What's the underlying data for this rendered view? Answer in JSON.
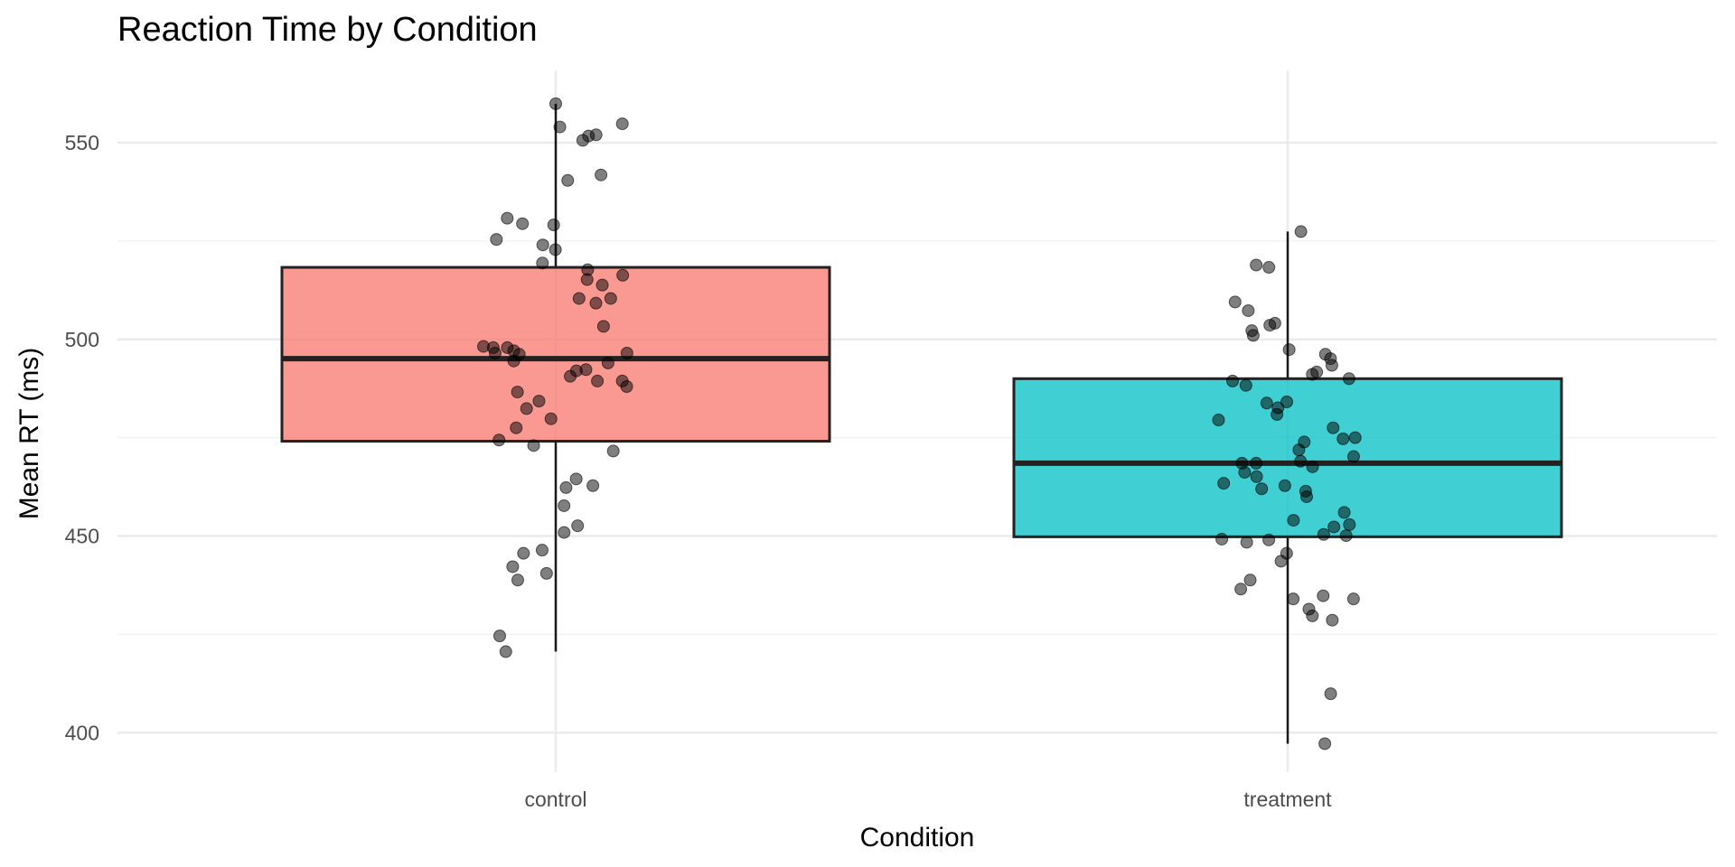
{
  "chart_data": {
    "type": "boxplot",
    "title": "Reaction Time by Condition",
    "xlabel": "Condition",
    "ylabel": "Mean RT (ms)",
    "categories": [
      "control",
      "treatment"
    ],
    "ylim": [
      391,
      568
    ],
    "yticks": [
      400,
      450,
      500,
      550
    ],
    "grid": true,
    "legend": "none",
    "colors": {
      "control": "#F8766D",
      "treatment": "#00BFC4",
      "points": "#000000",
      "box_border": "#222222",
      "grid": "#EBEBEB"
    },
    "boxes": [
      {
        "category": "control",
        "whisker_low": 420.6,
        "q1": 474.1,
        "median": 495.1,
        "q3": 518.3,
        "whisker_high": 559.9
      },
      {
        "category": "treatment",
        "whisker_low": 397.2,
        "q1": 449.8,
        "median": 468.5,
        "q3": 490.0,
        "whisker_high": 527.4
      }
    ],
    "points": {
      "control": [
        559.9,
        554.8,
        554.0,
        552.0,
        550.6,
        551.7,
        541.8,
        540.4,
        530.8,
        529.4,
        529.1,
        524.0,
        525.4,
        522.8,
        519.4,
        517.7,
        516.3,
        515.2,
        513.8,
        510.4,
        510.4,
        509.2,
        503.3,
        497.1,
        497.9,
        497.9,
        496.2,
        498.2,
        496.5,
        494.5,
        496.5,
        494.0,
        492.0,
        492.3,
        490.6,
        489.4,
        488.0,
        489.4,
        486.6,
        484.3,
        482.4,
        479.8,
        477.5,
        474.4,
        473.0,
        471.6,
        464.5,
        462.8,
        462.3,
        457.7,
        452.6,
        450.9,
        446.4,
        445.6,
        442.2,
        440.5,
        438.8,
        424.6,
        420.6
      ],
      "treatment": [
        527.4,
        518.3,
        518.9,
        507.3,
        509.5,
        504.1,
        503.6,
        502.2,
        501.0,
        496.2,
        497.4,
        495.1,
        493.4,
        491.7,
        490.0,
        491.1,
        488.3,
        489.4,
        484.1,
        483.8,
        482.6,
        480.9,
        479.5,
        477.5,
        475.0,
        473.9,
        474.7,
        471.9,
        470.2,
        469.0,
        467.6,
        468.5,
        468.5,
        466.2,
        465.1,
        463.4,
        462.0,
        462.8,
        461.4,
        460.0,
        456.0,
        452.9,
        452.3,
        454.0,
        450.4,
        450.1,
        449.0,
        449.2,
        448.4,
        445.6,
        443.6,
        438.8,
        436.5,
        434.8,
        434.0,
        434.0,
        431.4,
        429.7,
        428.6,
        409.9,
        397.2
      ]
    }
  }
}
